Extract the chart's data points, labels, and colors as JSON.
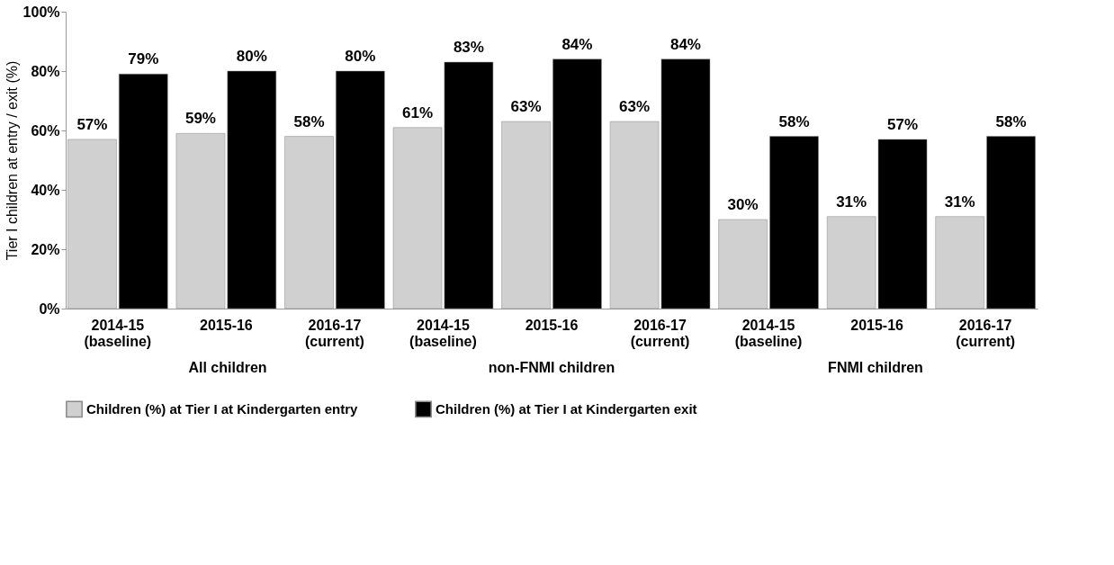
{
  "chart_data": {
    "type": "bar",
    "ylabel": "Tier  I children at entry / exit (%)",
    "categories": [
      "2014-15\n(baseline)",
      "2015-16",
      "2016-17\n(current)",
      "2014-15\n(baseline)",
      "2015-16",
      "2016-17\n(current)",
      "2014-15\n(baseline)",
      "2015-16",
      "2016-17\n(current)"
    ],
    "series": [
      {
        "name": "Children (%) at Tier I at Kindergarten entry",
        "color": "#d0d0d0",
        "values": [
          57,
          59,
          58,
          61,
          63,
          63,
          30,
          31,
          31
        ],
        "value_labels": [
          "57%",
          "59%",
          "58%",
          "61%",
          "63%",
          "63%",
          "30%",
          "31%",
          "31%"
        ]
      },
      {
        "name": "Children (%) at Tier I at Kindergarten exit",
        "color": "#000000",
        "values": [
          79,
          80,
          80,
          83,
          84,
          84,
          58,
          57,
          58
        ],
        "value_labels": [
          "79%",
          "80%",
          "80%",
          "83%",
          "84%",
          "84%",
          "58%",
          "57%",
          "58%"
        ]
      }
    ],
    "ylim": [
      0,
      100
    ],
    "yticks": [
      {
        "value": 0,
        "label": "0%"
      },
      {
        "value": 20,
        "label": "20%"
      },
      {
        "value": 40,
        "label": "40%"
      },
      {
        "value": 60,
        "label": "60%"
      },
      {
        "value": 80,
        "label": "80%"
      },
      {
        "value": 100,
        "label": "100%"
      }
    ],
    "annotations": [
      "All children",
      "non-FNMI children",
      "FNMI children"
    ],
    "grid": false,
    "legend": "bottom"
  }
}
